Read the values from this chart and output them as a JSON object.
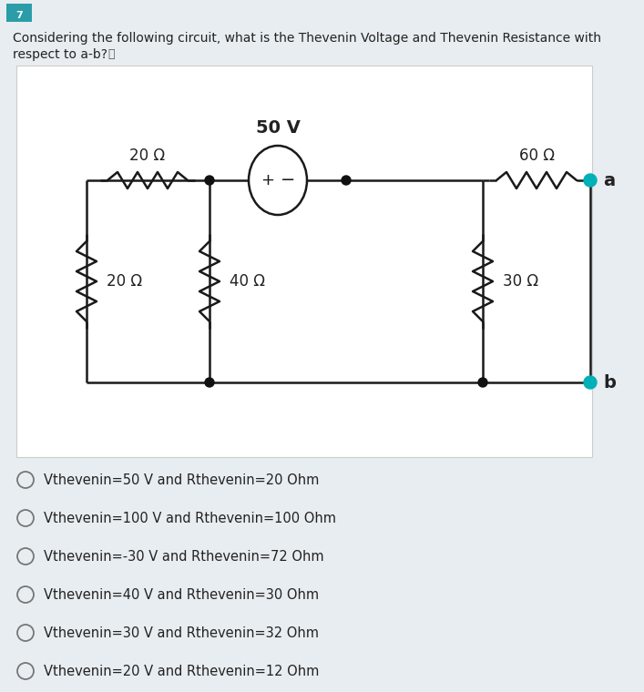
{
  "bg_color": "#e8edf1",
  "white_box_color": "#ffffff",
  "question_number": "7",
  "question_text_line1": "Considering the following circuit, what is the Thevenin Voltage and Thevenin Resistance with",
  "question_text_line2": "respect to a-b?",
  "circuit": {
    "wire_color": "#1a1a1a",
    "dot_color": "#111111",
    "ab_dot_color": "#00b0b8",
    "voltage_label": "50 V",
    "R1_label": "20 Ω",
    "R2_label": "20 Ω",
    "R3_label": "40 Ω",
    "R4_label": "60 Ω",
    "R5_label": "30 Ω"
  },
  "options": [
    "Vthevenin=50 V and Rthevenin=20 Ohm",
    "Vthevenin=100 V and Rthevenin=100 Ohm",
    "Vthevenin=-30 V and Rthevenin=72 Ohm",
    "Vthevenin=40 V and Rthevenin=30 Ohm",
    "Vthevenin=30 V and Rthevenin=32 Ohm",
    "Vthevenin=20 V and Rthevenin=12 Ohm"
  ]
}
